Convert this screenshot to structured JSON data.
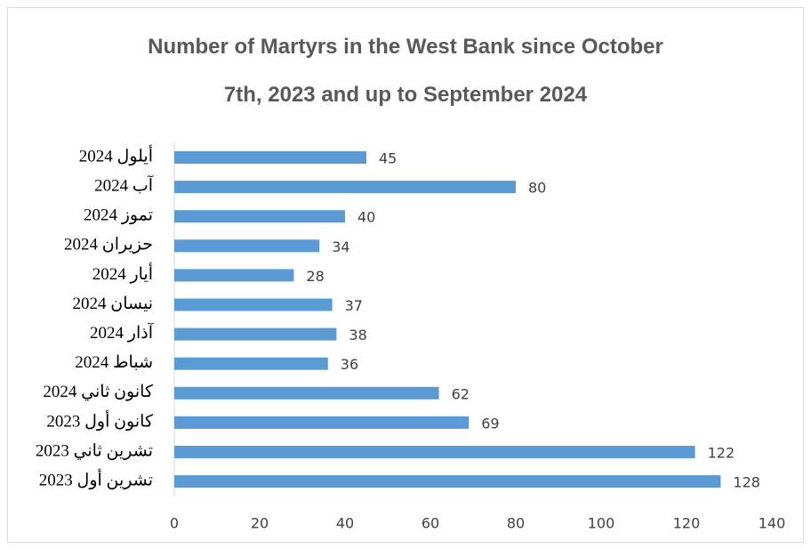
{
  "chart_data": {
    "type": "barh",
    "title": "Number of Martyrs in the West Bank since October\n7th, 2023 and up to September 2024",
    "categories": [
      "أيلول 2024",
      "آب 2024",
      "تموز 2024",
      "حزيران 2024",
      "أيار 2024",
      "نيسان 2024",
      "آذار 2024",
      "شباط 2024",
      "كانون ثاني 2024",
      "كانون أول 2023",
      "تشرين ثاني 2023",
      "تشرين أول 2023"
    ],
    "values": [
      45,
      80,
      40,
      34,
      28,
      37,
      38,
      36,
      62,
      69,
      122,
      128
    ],
    "color": "#5b9bd5",
    "xlim": [
      0,
      140
    ],
    "xticks": [
      0,
      20,
      40,
      60,
      80,
      100,
      120,
      140
    ],
    "grid": false
  }
}
